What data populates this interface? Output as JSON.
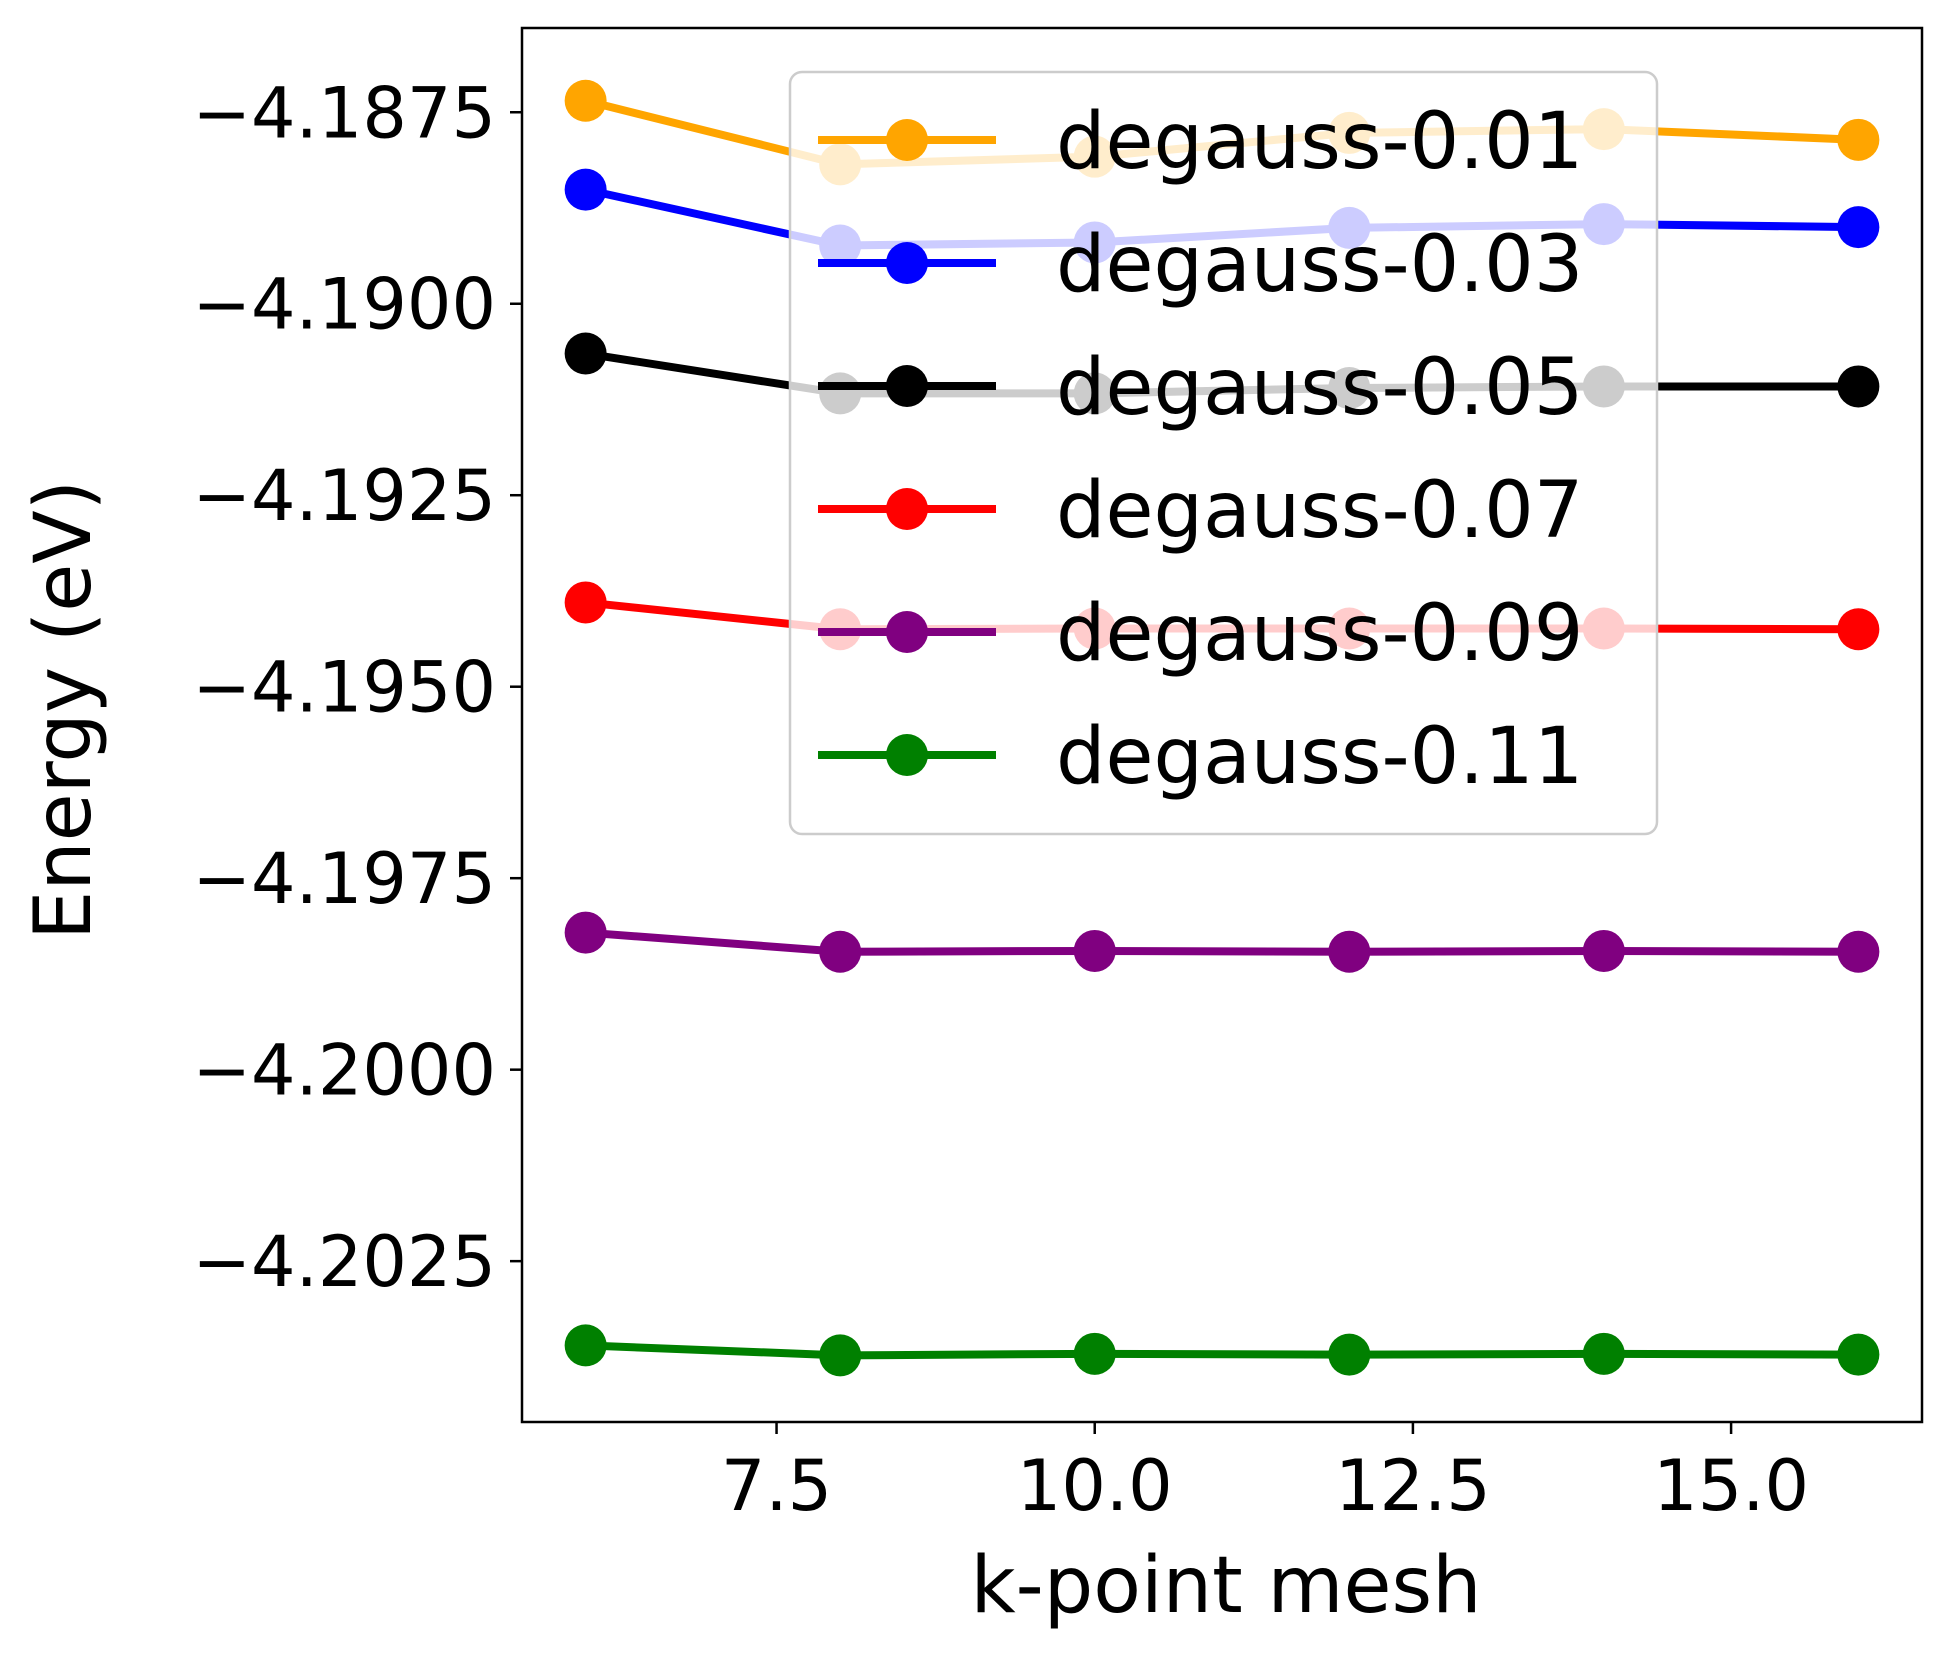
{
  "chart_data": {
    "type": "line",
    "title": "",
    "xlabel": "k-point mesh",
    "ylabel": "Energy (eV)",
    "xlim": [
      5.5,
      16.5
    ],
    "ylim": [
      -4.2046,
      -4.1864
    ],
    "xticks": [
      7.5,
      10.0,
      12.5,
      15.0
    ],
    "xtick_labels": [
      "7.5",
      "10.0",
      "12.5",
      "15.0"
    ],
    "yticks": [
      -4.1875,
      -4.19,
      -4.1925,
      -4.195,
      -4.1975,
      -4.2,
      -4.2025
    ],
    "ytick_labels": [
      "−4.1875",
      "−4.1900",
      "−4.1925",
      "−4.1950",
      "−4.1975",
      "−4.2000",
      "−4.2025"
    ],
    "grid": false,
    "legend_position": "top-right",
    "x": [
      6,
      8,
      10,
      12,
      14,
      16
    ],
    "series": [
      {
        "name": "degauss-0.01",
        "color": "#ffa500",
        "values": [
          -4.18735,
          -4.18818,
          -4.18808,
          -4.18777,
          -4.18772,
          -4.18786
        ]
      },
      {
        "name": "degauss-0.03",
        "color": "#0000ff",
        "values": [
          -4.18851,
          -4.18924,
          -4.1892,
          -4.18901,
          -4.18896,
          -4.189
        ]
      },
      {
        "name": "degauss-0.05",
        "color": "#000000",
        "values": [
          -4.19065,
          -4.19117,
          -4.19117,
          -4.1911,
          -4.19108,
          -4.19108
        ]
      },
      {
        "name": "degauss-0.07",
        "color": "#ff0000",
        "values": [
          -4.1939,
          -4.19425,
          -4.19424,
          -4.19424,
          -4.19424,
          -4.19425
        ]
      },
      {
        "name": "degauss-0.09",
        "color": "#800080",
        "values": [
          -4.19821,
          -4.19846,
          -4.19845,
          -4.19846,
          -4.19845,
          -4.19846
        ]
      },
      {
        "name": "degauss-0.11",
        "color": "#008000",
        "values": [
          -4.2036,
          -4.20373,
          -4.20371,
          -4.20372,
          -4.20371,
          -4.20372
        ]
      }
    ]
  }
}
